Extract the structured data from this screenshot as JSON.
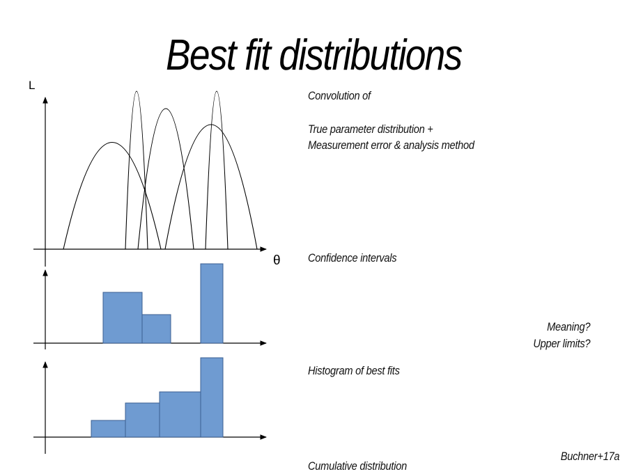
{
  "slide": {
    "title": "Best fit distributions",
    "y_axis_label": "L",
    "x_axis_label": "θ",
    "notes": {
      "convolution": "Convolution of",
      "true_param": "True parameter distribution +",
      "measurement": "Measurement error & analysis method",
      "confidence": "Confidence intervals",
      "meaning": "Meaning?",
      "upper_limits": "Upper limits?",
      "histogram": "Histogram of best fits",
      "cumulative": "Cumulative distribution",
      "citation": "Buchner+17a"
    }
  },
  "colors": {
    "bar_fill": "#6f9bd1",
    "bar_stroke": "#3b5f91",
    "line": "#000000"
  }
}
